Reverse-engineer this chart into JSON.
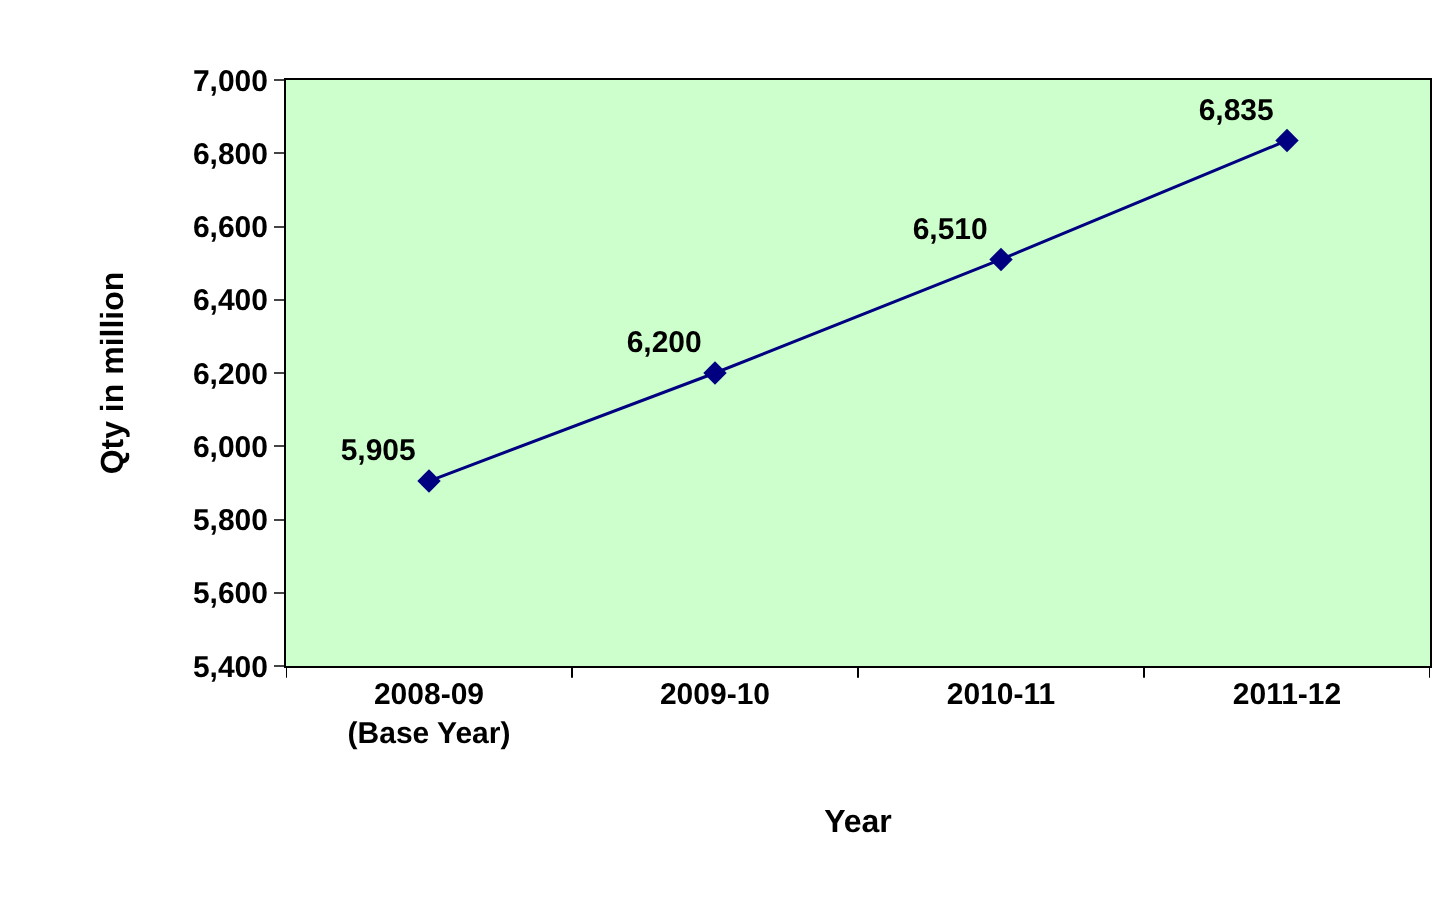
{
  "chart_data": {
    "type": "line",
    "xlabel": "Year",
    "ylabel": "Qty in million",
    "categories": [
      "2008-09\n(Base Year)",
      "2009-10",
      "2010-11",
      "2011-12"
    ],
    "series": [
      {
        "color": "#000080",
        "values": [
          5905,
          6200,
          6510,
          6835
        ],
        "value_labels": [
          "5,905",
          "6,200",
          "6,510",
          "6,835"
        ]
      }
    ],
    "ylim": [
      5400,
      7000
    ],
    "yticks": [
      {
        "value": 5400,
        "label": "5,400"
      },
      {
        "value": 5600,
        "label": "5,600"
      },
      {
        "value": 5800,
        "label": "5,800"
      },
      {
        "value": 6000,
        "label": "6,000"
      },
      {
        "value": 6200,
        "label": "6,200"
      },
      {
        "value": 6400,
        "label": "6,400"
      },
      {
        "value": 6600,
        "label": "6,600"
      },
      {
        "value": 6800,
        "label": "6,800"
      },
      {
        "value": 7000,
        "label": "7,000"
      }
    ],
    "grid": false,
    "legend": false,
    "marker": "diamond",
    "line_style": "solid"
  }
}
